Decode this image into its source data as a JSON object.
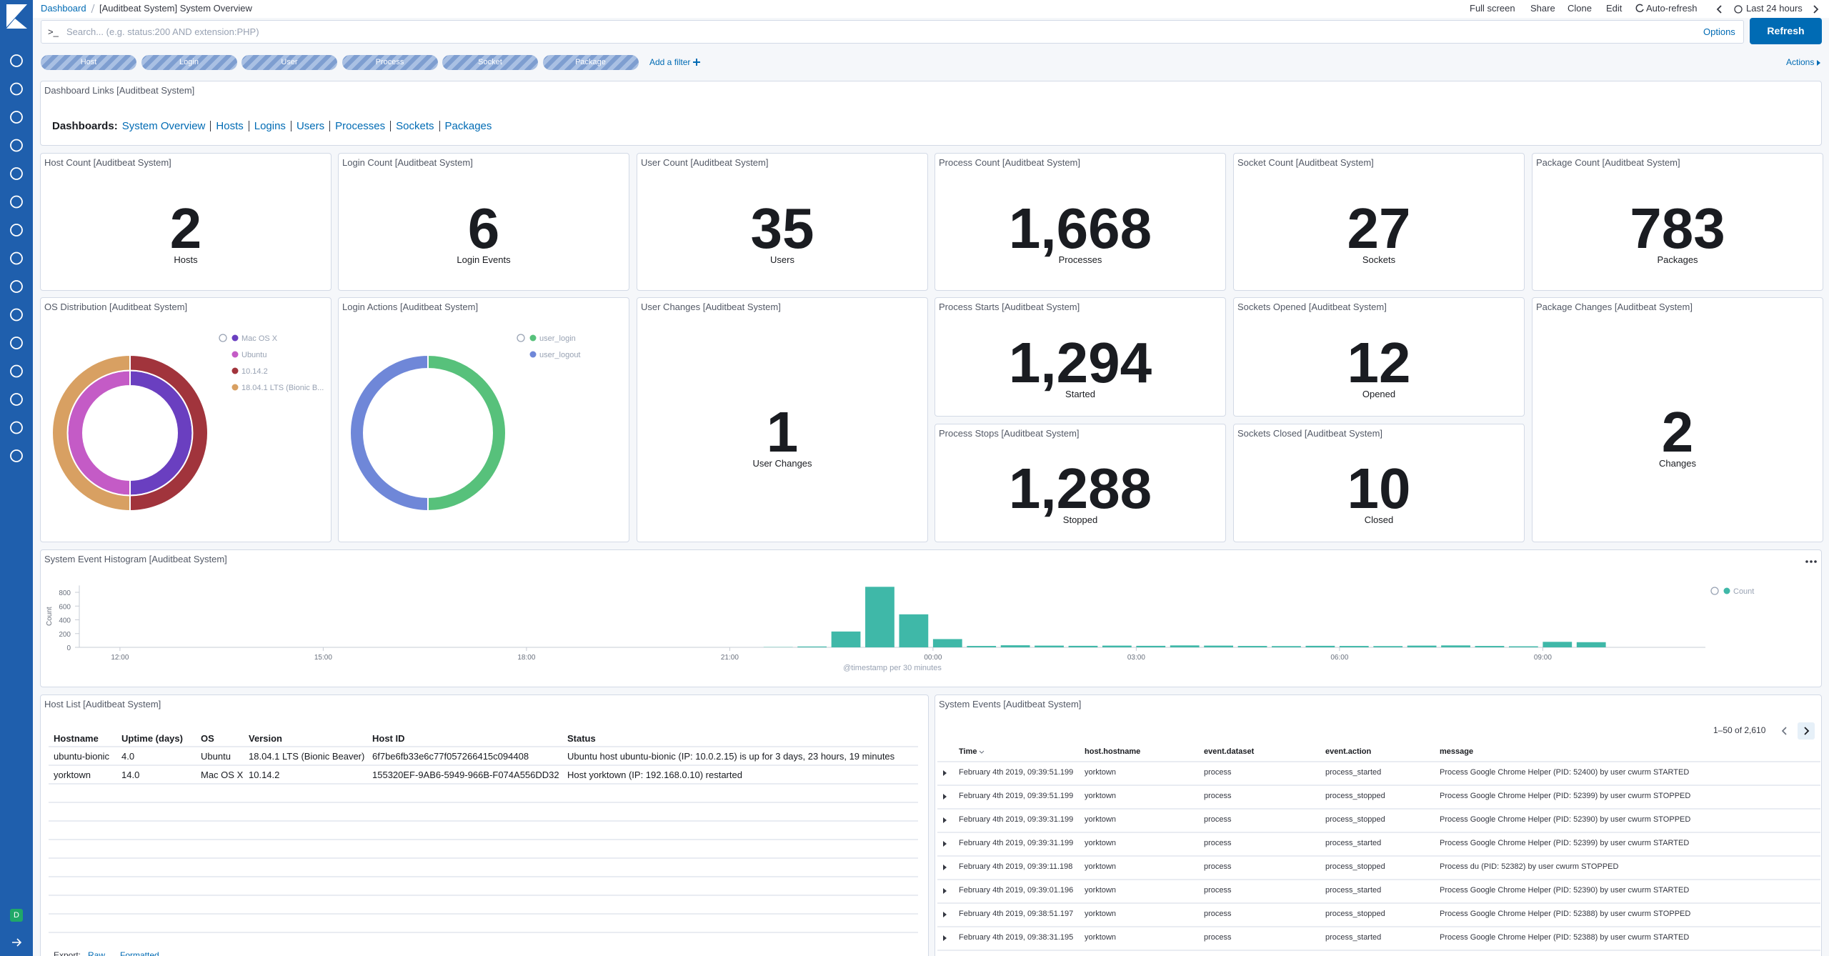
{
  "sidebar": {
    "avatar": "D"
  },
  "header": {
    "breadcrumbs": [
      "Dashboard",
      "[Auditbeat System] System Overview"
    ],
    "menu": [
      "Full screen",
      "Share",
      "Clone",
      "Edit",
      "Auto-refresh"
    ],
    "time_range": "Last 24 hours"
  },
  "query_bar": {
    "prompt": ">_",
    "placeholder": "Search... (e.g. status:200 AND extension:PHP)",
    "options": "Options",
    "refresh": "Refresh"
  },
  "filters": {
    "pills": [
      "Host",
      "Login",
      "User",
      "Process",
      "Socket",
      "Package"
    ],
    "add": "Add a filter",
    "actions": "Actions"
  },
  "links_panel": {
    "title": "Dashboard Links [Auditbeat System]",
    "label": "Dashboards:",
    "links": [
      "System Overview",
      "Hosts",
      "Logins",
      "Users",
      "Processes",
      "Sockets",
      "Packages"
    ]
  },
  "metrics": [
    {
      "title": "Host Count [Auditbeat System]",
      "value": "2",
      "label": "Hosts"
    },
    {
      "title": "Login Count [Auditbeat System]",
      "value": "6",
      "label": "Login Events"
    },
    {
      "title": "User Count [Auditbeat System]",
      "value": "35",
      "label": "Users"
    },
    {
      "title": "Process Count [Auditbeat System]",
      "value": "1,668",
      "label": "Processes"
    },
    {
      "title": "Socket Count [Auditbeat System]",
      "value": "27",
      "label": "Sockets"
    },
    {
      "title": "Package Count [Auditbeat System]",
      "value": "783",
      "label": "Packages"
    },
    {
      "title": "User Changes [Auditbeat System]",
      "value": "1",
      "label": "User Changes"
    },
    {
      "title": "Process Starts [Auditbeat System]",
      "value": "1,294",
      "label": "Started"
    },
    {
      "title": "Sockets Opened [Auditbeat System]",
      "value": "12",
      "label": "Opened"
    },
    {
      "title": "Package Changes [Auditbeat System]",
      "value": "2",
      "label": "Changes"
    },
    {
      "title": "Process Stops [Auditbeat System]",
      "value": "1,288",
      "label": "Stopped"
    },
    {
      "title": "Sockets Closed [Auditbeat System]",
      "value": "10",
      "label": "Closed"
    }
  ],
  "chart_data": [
    {
      "type": "pie",
      "title": "OS Distribution [Auditbeat System]",
      "donut": true,
      "rings": [
        {
          "categories": [
            "Mac OS X",
            "Ubuntu"
          ],
          "values": [
            1,
            1
          ],
          "colors": [
            "#6a3fc0",
            "#c45bc6"
          ]
        },
        {
          "categories": [
            "10.14.2",
            "18.04.1 LTS (Bionic B..."
          ],
          "values": [
            1,
            1
          ],
          "colors": [
            "#a1343c",
            "#d8a062"
          ]
        }
      ]
    },
    {
      "type": "pie",
      "title": "Login Actions [Auditbeat System]",
      "donut": true,
      "rings": [
        {
          "categories": [
            "user_login",
            "user_logout"
          ],
          "values": [
            3,
            3
          ],
          "colors": [
            "#57c17b",
            "#6f87d8"
          ]
        }
      ]
    },
    {
      "type": "bar",
      "title": "System Event Histogram [Auditbeat System]",
      "x_label": "@timestamp per 30 minutes",
      "y_label": "Count",
      "x": [
        "21:30",
        "22:00",
        "22:30",
        "23:00",
        "23:30",
        "00:00",
        "00:30",
        "01:00",
        "01:30",
        "02:00",
        "02:30",
        "03:00",
        "03:30",
        "04:00",
        "04:30",
        "05:00",
        "05:30",
        "06:00",
        "06:30",
        "07:00",
        "07:30",
        "08:00",
        "08:30",
        "09:00",
        "09:30"
      ],
      "series": [
        {
          "name": "Count",
          "color": "#3fb8a8",
          "values": [
            4,
            12,
            230,
            880,
            480,
            120,
            20,
            30,
            25,
            22,
            25,
            22,
            28,
            25,
            20,
            18,
            22,
            20,
            18,
            25,
            28,
            20,
            15,
            80,
            75
          ]
        }
      ],
      "xlim": [
        "11:24",
        "11:24"
      ],
      "xticks": [
        "12:00",
        "15:00",
        "18:00",
        "21:00",
        "00:00",
        "03:00",
        "06:00",
        "09:00"
      ],
      "ylim": [
        0,
        900
      ],
      "yticks": [
        0,
        200,
        400,
        600,
        800
      ],
      "legend": "top-right"
    }
  ],
  "host_list": {
    "title": "Host List [Auditbeat System]",
    "columns": [
      "Hostname",
      "Uptime (days)",
      "OS",
      "Version",
      "Host ID",
      "Status"
    ],
    "rows": [
      [
        "ubuntu-bionic",
        "4.0",
        "Ubuntu",
        "18.04.1 LTS (Bionic Beaver)",
        "6f7be6fb33e6c77f057266415c094408",
        "Ubuntu host ubuntu-bionic (IP: 10.0.2.15) is up for 3 days, 23 hours, 19 minutes"
      ],
      [
        "yorktown",
        "14.0",
        "Mac OS X",
        "10.14.2",
        "155320EF-9AB6-5949-966B-F074A556DD32",
        "Host yorktown (IP: 192.168.0.10) restarted"
      ]
    ],
    "export": {
      "label": "Export:",
      "options": [
        "Raw",
        "Formatted"
      ]
    }
  },
  "system_events": {
    "title": "System Events [Auditbeat System]",
    "pagination": "1–50 of 2,610",
    "columns": [
      "Time",
      "host.hostname",
      "event.dataset",
      "event.action",
      "message"
    ],
    "rows": [
      [
        "February 4th 2019, 09:39:51.199",
        "yorktown",
        "process",
        "process_started",
        "Process Google Chrome Helper (PID: 52400) by user cwurm STARTED"
      ],
      [
        "February 4th 2019, 09:39:51.199",
        "yorktown",
        "process",
        "process_stopped",
        "Process Google Chrome Helper (PID: 52399) by user cwurm STOPPED"
      ],
      [
        "February 4th 2019, 09:39:31.199",
        "yorktown",
        "process",
        "process_stopped",
        "Process Google Chrome Helper (PID: 52390) by user cwurm STOPPED"
      ],
      [
        "February 4th 2019, 09:39:31.199",
        "yorktown",
        "process",
        "process_started",
        "Process Google Chrome Helper (PID: 52399) by user cwurm STARTED"
      ],
      [
        "February 4th 2019, 09:39:11.198",
        "yorktown",
        "process",
        "process_stopped",
        "Process du (PID: 52382) by user cwurm STOPPED"
      ],
      [
        "February 4th 2019, 09:39:01.196",
        "yorktown",
        "process",
        "process_started",
        "Process Google Chrome Helper (PID: 52390) by user cwurm STARTED"
      ],
      [
        "February 4th 2019, 09:38:51.197",
        "yorktown",
        "process",
        "process_stopped",
        "Process Google Chrome Helper (PID: 52388) by user cwurm STOPPED"
      ],
      [
        "February 4th 2019, 09:38:31.195",
        "yorktown",
        "process",
        "process_started",
        "Process Google Chrome Helper (PID: 52388) by user cwurm STARTED"
      ]
    ]
  }
}
